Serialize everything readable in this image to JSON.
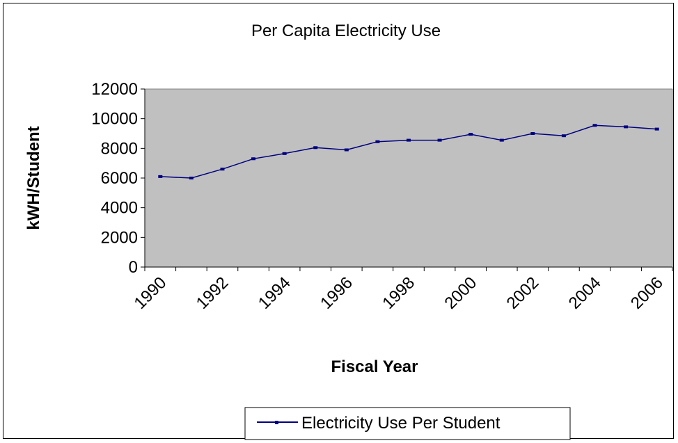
{
  "chart_data": {
    "type": "line",
    "title": "Per Capita Electricity Use",
    "xlabel": "Fiscal Year",
    "ylabel": "kWH/Student",
    "x": [
      1990,
      1991,
      1992,
      1993,
      1994,
      1995,
      1996,
      1997,
      1998,
      1999,
      2000,
      2001,
      2002,
      2003,
      2004,
      2005,
      2006
    ],
    "x_tick_labels": [
      "1990",
      "1992",
      "1994",
      "1996",
      "1998",
      "2000",
      "2002",
      "2004",
      "2006"
    ],
    "y_ticks": [
      0,
      2000,
      4000,
      6000,
      8000,
      10000,
      12000
    ],
    "ylim": [
      0,
      12000
    ],
    "series": [
      {
        "name": "Electricity Use Per Student",
        "color": "#000080",
        "values": [
          6100,
          6000,
          6600,
          7300,
          7650,
          8050,
          7900,
          8450,
          8550,
          8550,
          8950,
          8550,
          9000,
          8850,
          9550,
          9450,
          9300
        ]
      }
    ],
    "plot_background": "#c0c0c0",
    "grid": false,
    "legend_position": "bottom"
  }
}
